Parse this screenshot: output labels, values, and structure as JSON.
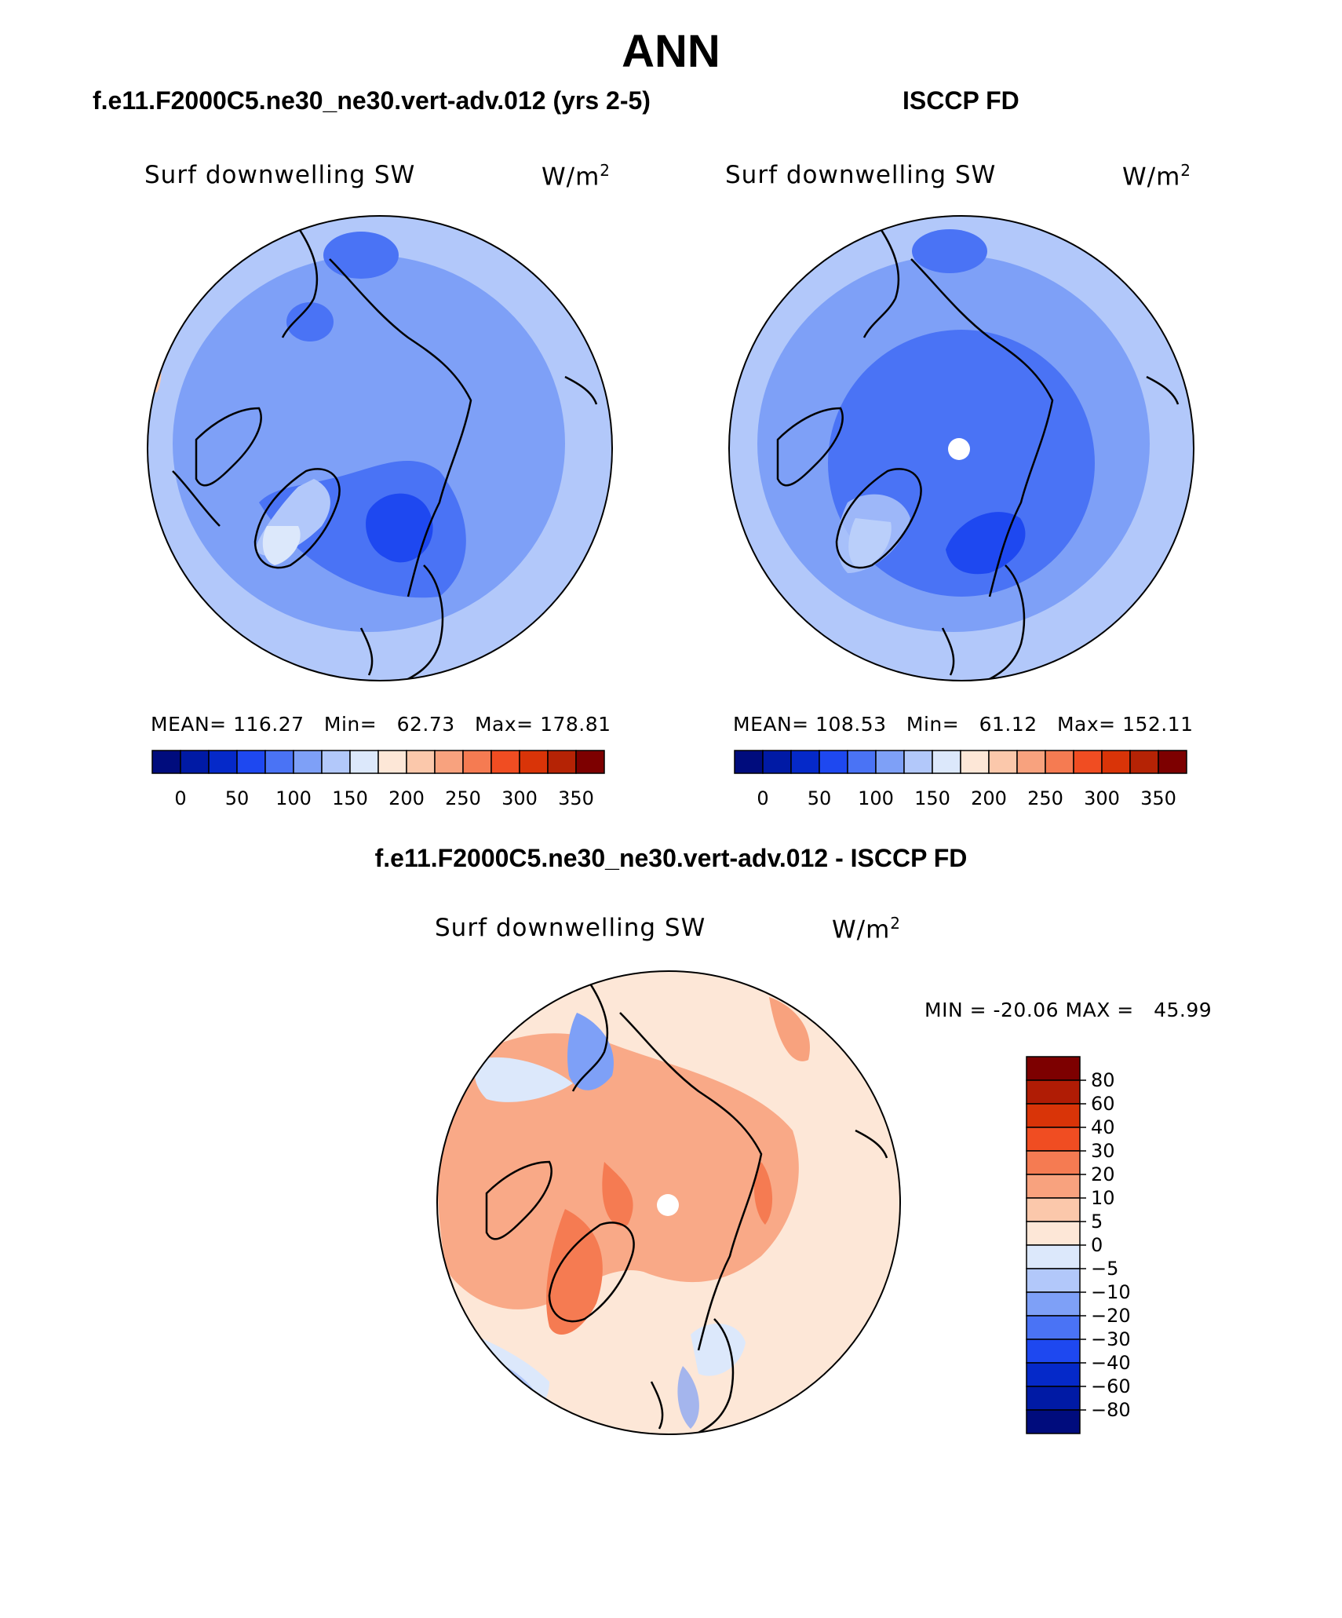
{
  "main_title": "ANN",
  "panels": [
    {
      "case": "f.e11.F2000C5.ne30_ne30.vert-adv.012 (yrs 2-5)",
      "variable": "Surf downwelling SW",
      "unit_base": "W/m",
      "unit_exp": "2",
      "stats": {
        "mean_label": "MEAN=",
        "mean": "116.27",
        "min_label": "Min=",
        "min": "62.73",
        "max_label": "Max=",
        "max": "178.81"
      }
    },
    {
      "case": "ISCCP FD",
      "variable": "Surf downwelling SW",
      "unit_base": "W/m",
      "unit_exp": "2",
      "stats": {
        "mean_label": "MEAN=",
        "mean": "108.53",
        "min_label": "Min=",
        "min": "61.12",
        "max_label": "Max=",
        "max": "152.11"
      }
    }
  ],
  "difference": {
    "title": "f.e11.F2000C5.ne30_ne30.vert-adv.012 - ISCCP FD",
    "variable": "Surf downwelling SW",
    "unit_base": "W/m",
    "unit_exp": "2",
    "min_label": "MIN =",
    "min": "-20.06",
    "max_label": "MAX =",
    "max": "45.99"
  },
  "colorbar_abs": {
    "labels": [
      "0",
      "50",
      "100",
      "150",
      "200",
      "250",
      "300",
      "350"
    ],
    "colors": [
      "#000c7d",
      "#001aa5",
      "#0529c9",
      "#1e48f0",
      "#4a73f5",
      "#7ea0f7",
      "#b2c8fa",
      "#dce8fb",
      "#fde7d7",
      "#fbc8ab",
      "#f8a27e",
      "#f57b52",
      "#f04d22",
      "#d93408",
      "#b52305",
      "#7d0000"
    ]
  },
  "colorbar_diff": {
    "labels": [
      "80",
      "60",
      "40",
      "30",
      "20",
      "10",
      "5",
      "0",
      "−5",
      "−10",
      "−20",
      "−30",
      "−40",
      "−60",
      "−80"
    ],
    "colors": [
      "#7d0000",
      "#b01c05",
      "#d93408",
      "#f04d22",
      "#f57b52",
      "#f8a27e",
      "#fbc8ab",
      "#fde7d7",
      "#dce8fb",
      "#b2c8fa",
      "#7ea0f7",
      "#4a73f5",
      "#1e48f0",
      "#0529c9",
      "#001aa5",
      "#000c7d"
    ]
  }
}
